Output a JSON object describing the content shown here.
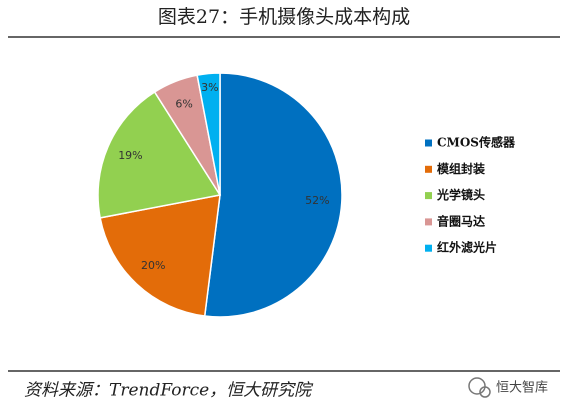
{
  "chart_data": {
    "type": "pie",
    "title": "图表27：手机摄像头成本构成",
    "categories": [
      "CMOS传感器",
      "模组封装",
      "光学镜头",
      "音圈马达",
      "红外滤光片"
    ],
    "values": [
      52,
      20,
      19,
      6,
      3
    ],
    "value_labels": [
      "52%",
      "20%",
      "19%",
      "6%",
      "3%"
    ],
    "colors": [
      "#0070c0",
      "#e36c09",
      "#92d050",
      "#d99694",
      "#00b0f0"
    ],
    "legend": "right"
  },
  "source": "资料来源：TrendForce，恒大研究院",
  "watermark": "恒大智库"
}
